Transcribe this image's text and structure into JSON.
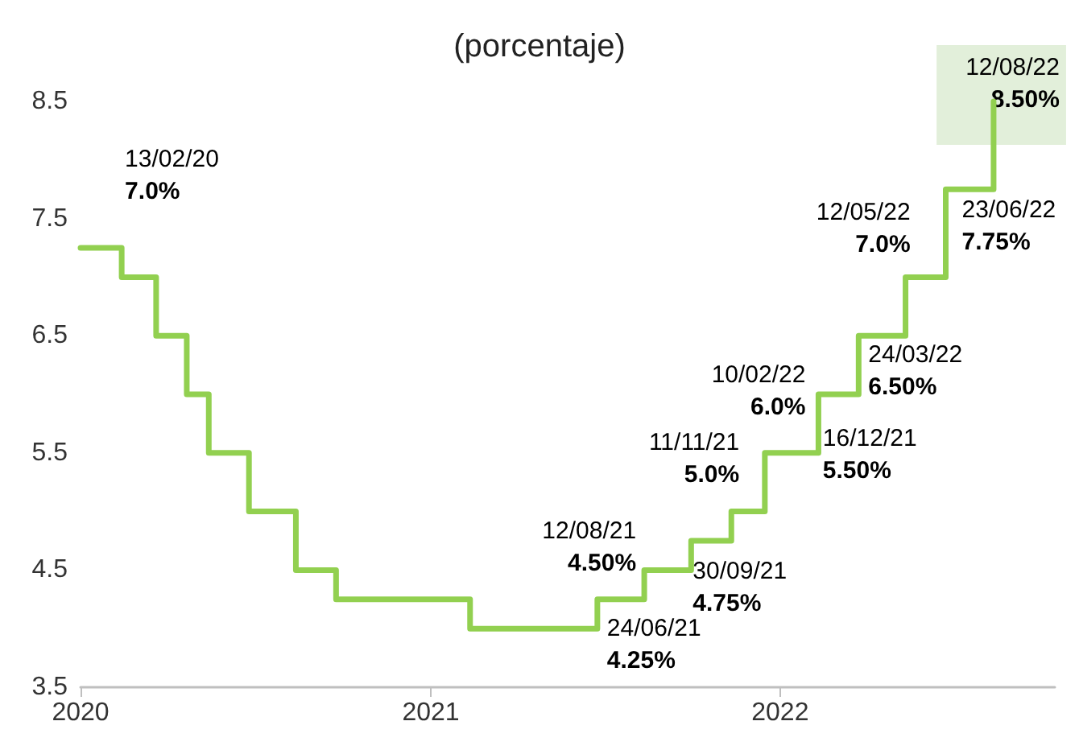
{
  "chart_data": {
    "type": "step",
    "title": "(porcentaje)",
    "x": [
      "2020-01-01",
      "2020-02-13",
      "2020-03-20",
      "2020-04-21",
      "2020-05-14",
      "2020-06-25",
      "2020-08-13",
      "2020-09-24",
      "2021-02-11",
      "2021-06-24",
      "2021-08-12",
      "2021-09-30",
      "2021-11-11",
      "2021-12-16",
      "2022-02-10",
      "2022-03-24",
      "2022-05-12",
      "2022-06-23",
      "2022-08-12"
    ],
    "values": [
      7.25,
      7.0,
      6.5,
      6.0,
      5.5,
      5.0,
      4.5,
      4.25,
      4.0,
      4.25,
      4.5,
      4.75,
      5.0,
      5.5,
      6.0,
      6.5,
      7.0,
      7.75,
      8.5
    ],
    "color": "#92d050",
    "xlim": [
      "2020-01-01",
      "2022-10-15"
    ],
    "xticks": [
      "2020",
      "2021",
      "2022"
    ],
    "ylim": [
      3.5,
      8.5
    ],
    "yticks": [
      3.5,
      4.5,
      5.5,
      6.5,
      7.5,
      8.5
    ],
    "grid": false,
    "marker": "none",
    "line_style": "solid",
    "annotations": [
      {
        "text": "13/02/20\n7.0%",
        "x": "2020-02-13",
        "y": 7.0
      },
      {
        "text": "24/06/21\n4.25%",
        "x": "2021-06-24",
        "y": 4.25
      },
      {
        "text": "12/08/21\n4.50%",
        "x": "2021-08-12",
        "y": 4.5
      },
      {
        "text": "30/09/21\n4.75%",
        "x": "2021-09-30",
        "y": 4.75
      },
      {
        "text": "11/11/21\n5.0%",
        "x": "2021-11-11",
        "y": 5.0
      },
      {
        "text": "16/12/21\n5.50%",
        "x": "2021-12-16",
        "y": 5.5
      },
      {
        "text": "10/02/22\n6.0%",
        "x": "2022-02-10",
        "y": 6.0
      },
      {
        "text": "24/03/22\n6.50%",
        "x": "2022-03-24",
        "y": 6.5
      },
      {
        "text": "12/05/22\n7.0%",
        "x": "2022-05-12",
        "y": 7.0
      },
      {
        "text": "23/06/22\n7.75%",
        "x": "2022-06-23",
        "y": 7.75
      },
      {
        "text": "12/08/22\n8.50%",
        "x": "2022-08-12",
        "y": 8.5
      }
    ]
  }
}
